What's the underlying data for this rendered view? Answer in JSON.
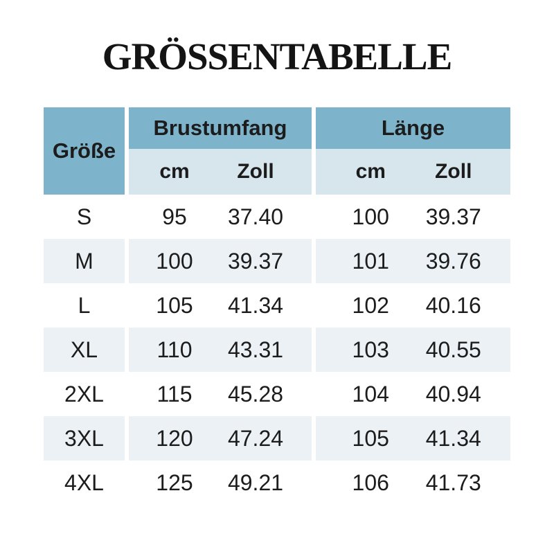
{
  "title": "GRÖSSENTABELLE",
  "table": {
    "size_header": "Größe",
    "groups": [
      {
        "label": "Brustumfang",
        "units": [
          "cm",
          "Zoll"
        ]
      },
      {
        "label": "Länge",
        "units": [
          "cm",
          "Zoll"
        ]
      }
    ]
  },
  "chart_data": {
    "type": "table",
    "title": "GRÖSSENTABELLE",
    "columns": [
      "Größe",
      "Brustumfang (cm)",
      "Brustumfang (Zoll)",
      "Länge (cm)",
      "Länge (Zoll)"
    ],
    "rows": [
      [
        "S",
        "95",
        "37.40",
        "100",
        "39.37"
      ],
      [
        "M",
        "100",
        "39.37",
        "101",
        "39.76"
      ],
      [
        "L",
        "105",
        "41.34",
        "102",
        "40.16"
      ],
      [
        "XL",
        "110",
        "43.31",
        "103",
        "40.55"
      ],
      [
        "2XL",
        "115",
        "45.28",
        "104",
        "40.94"
      ],
      [
        "3XL",
        "120",
        "47.24",
        "105",
        "41.34"
      ],
      [
        "4XL",
        "125",
        "49.21",
        "106",
        "41.73"
      ]
    ],
    "layout": {
      "striped_rows": true,
      "row_stripe_pattern": "even-rows-light",
      "grid": "off"
    }
  },
  "colors": {
    "header_blue": "#7DB4CB",
    "subheader_blue": "#D7E6EC",
    "stripe": "#EBF1F4",
    "text": "#1C1C1C"
  }
}
